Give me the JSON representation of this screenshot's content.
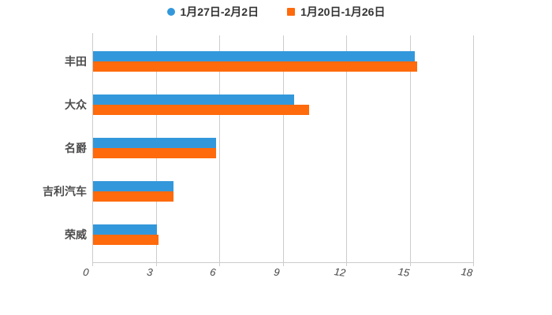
{
  "chart_data": {
    "type": "bar",
    "orientation": "horizontal",
    "title": "",
    "xlabel": "",
    "ylabel": "",
    "categories_order": "top-to-bottom",
    "categories": [
      "丰田",
      "大众",
      "名爵",
      "吉利汽车",
      "荣威"
    ],
    "series": [
      {
        "name": "1月27日-2月2日",
        "color": "#3398db",
        "marker": "circle",
        "values": [
          15.2,
          9.5,
          5.8,
          3.8,
          3.0
        ]
      },
      {
        "name": "1月20日-1月26日",
        "color": "#ff6a0c",
        "marker": "square",
        "values": [
          15.3,
          10.2,
          5.8,
          3.8,
          3.1
        ]
      }
    ],
    "xlim": [
      0,
      18
    ],
    "x_ticks": [
      0,
      3,
      6,
      9,
      12,
      15,
      18
    ],
    "grid": true,
    "grid_color": "#cccccc",
    "legend_position": "top",
    "background": "#ffffff",
    "text_color": "#4d4d4d"
  }
}
